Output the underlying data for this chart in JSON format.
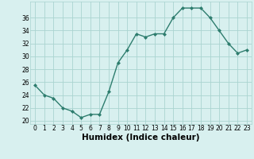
{
  "x": [
    0,
    1,
    2,
    3,
    4,
    5,
    6,
    7,
    8,
    9,
    10,
    11,
    12,
    13,
    14,
    15,
    16,
    17,
    18,
    19,
    20,
    21,
    22,
    23
  ],
  "y": [
    25.5,
    24.0,
    23.5,
    22.0,
    21.5,
    20.5,
    21.0,
    21.0,
    24.5,
    29.0,
    31.0,
    33.5,
    33.0,
    33.5,
    33.5,
    36.0,
    37.5,
    37.5,
    37.5,
    36.0,
    34.0,
    32.0,
    30.5,
    31.0
  ],
  "line_color": "#2e7d6e",
  "marker": "D",
  "marker_size": 2.0,
  "bg_color": "#d8f0ef",
  "grid_color": "#aad4d0",
  "xlabel": "Humidex (Indice chaleur)",
  "xlim": [
    -0.5,
    23.5
  ],
  "ylim": [
    19.5,
    38.5
  ],
  "yticks": [
    20,
    22,
    24,
    26,
    28,
    30,
    32,
    34,
    36
  ],
  "xticks": [
    0,
    1,
    2,
    3,
    4,
    5,
    6,
    7,
    8,
    9,
    10,
    11,
    12,
    13,
    14,
    15,
    16,
    17,
    18,
    19,
    20,
    21,
    22,
    23
  ],
  "tick_fontsize": 5.5,
  "xlabel_fontsize": 7.5,
  "line_width": 1.0
}
